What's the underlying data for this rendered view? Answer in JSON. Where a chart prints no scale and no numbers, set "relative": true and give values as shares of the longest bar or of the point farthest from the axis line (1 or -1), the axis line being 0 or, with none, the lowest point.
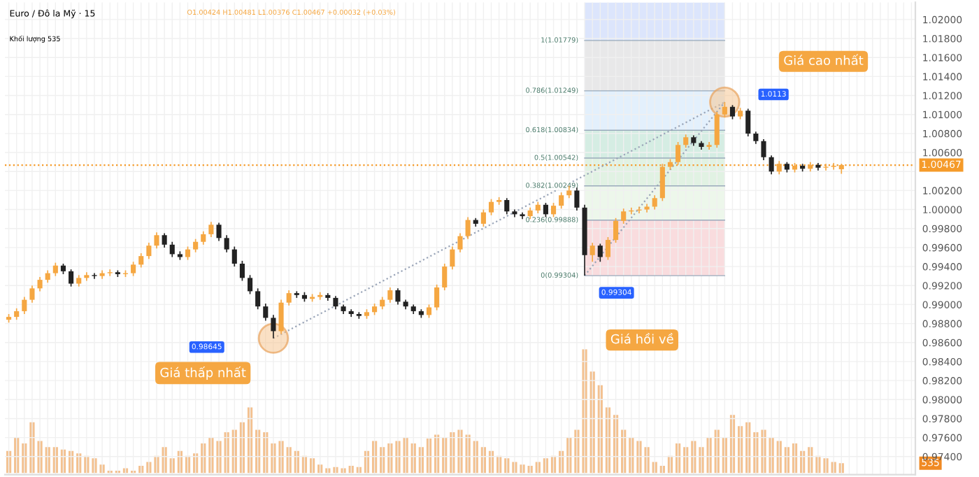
{
  "chart_data": [
    {
      "type": "candlestick",
      "title": "Euro / Đô la Mỹ · 15",
      "subtitle": "O1.00424 H1.00481 L1.00376 C1.00467 +0.00032 (+0.03%)",
      "legend_title": "Khối lượng 535",
      "categories": [
        null,
        null,
        null,
        null,
        null,
        null,
        null,
        null,
        null,
        null,
        null,
        null,
        null,
        null,
        null,
        null,
        null,
        null,
        null,
        null,
        null,
        null,
        null,
        null,
        null,
        null,
        null,
        null,
        null,
        null,
        null,
        null,
        null,
        null,
        null,
        null,
        null,
        null,
        null,
        null,
        null,
        null,
        null,
        null,
        null,
        null,
        null,
        null,
        null,
        null,
        null,
        null,
        null,
        null,
        null,
        null,
        null,
        null,
        null,
        null,
        null,
        null,
        null,
        null,
        null,
        null,
        null,
        null,
        null,
        null,
        null,
        null,
        null,
        null,
        null,
        null,
        null,
        null,
        null,
        null,
        null,
        null,
        null,
        null,
        null,
        null,
        null,
        null,
        null,
        null,
        null,
        null,
        null,
        null,
        null,
        null,
        null,
        null,
        null,
        null,
        null,
        null,
        null,
        null,
        null,
        null,
        null,
        null,
        null,
        null,
        null,
        null,
        null,
        null,
        null,
        null,
        null
      ],
      "series": [
        {
          "colors": [
            "#f5a742",
            "#f5a742",
            "#f5a742",
            "#f5a742",
            "#f5a742",
            "#f5a742",
            "#f5a742",
            "#222222",
            "#222222",
            "#f5a742",
            "#f5a742",
            "#222222",
            "#f5a742",
            "#f5a742",
            "#222222",
            "#f5a742",
            "#f5a742",
            "#f5a742",
            "#f5a742",
            "#f5a742",
            "#222222",
            "#222222",
            "#222222",
            "#f5a742",
            "#f5a742",
            "#f5a742",
            "#f5a742",
            "#222222",
            "#222222",
            "#222222",
            "#222222",
            "#222222",
            "#222222",
            "#222222",
            "#222222",
            "#f5a742",
            "#f5a742",
            "#222222",
            "#222222",
            "#f5a742",
            "#f5a742",
            "#222222",
            "#222222",
            "#222222",
            "#222222",
            "#222222",
            "#f5a742",
            "#f5a742",
            "#f5a742",
            "#f5a742",
            "#222222",
            "#222222",
            "#222222",
            "#222222",
            "#f5a742",
            "#f5a742",
            "#f5a742",
            "#f5a742",
            "#f5a742",
            "#f5a742",
            "#222222",
            "#f5a742",
            "#f5a742",
            "#f5a742",
            "#222222",
            "#222222",
            "#222222",
            "#f5a742",
            "#f5a742",
            "#222222",
            "#f5a742",
            "#f5a742",
            "#f5a742",
            "#222222",
            "#222222",
            "#f5a742",
            "#222222",
            "#f5a742",
            "#f5a742",
            "#f5a742",
            "#f5a742",
            "#f5a742",
            "#f5a742",
            "#f5a742",
            "#f5a742",
            "#f5a742",
            "#f5a742",
            "#f5a742",
            "#222222",
            "#222222",
            "#f5a742",
            "#f5a742",
            "#f5a742",
            "#222222",
            "#f5a742",
            "#222222",
            "#222222",
            "#222222",
            "#222222",
            "#f5a742",
            "#222222",
            "#f5a742",
            "#222222",
            "#f5a742",
            "#222222",
            "#f5a742",
            "#f5a742",
            "#f5a742",
            null,
            null,
            null,
            null,
            null,
            null,
            null,
            null,
            null
          ],
          "ohlc": [
            [
              0.9884,
              0.989,
              0.9881,
              0.9887
            ],
            [
              0.9887,
              0.9896,
              0.9884,
              0.9893
            ],
            [
              0.9893,
              0.9908,
              0.989,
              0.9905
            ],
            [
              0.9905,
              0.992,
              0.9902,
              0.9917
            ],
            [
              0.9917,
              0.9929,
              0.9914,
              0.9926
            ],
            [
              0.9926,
              0.9936,
              0.9923,
              0.9933
            ],
            [
              0.9933,
              0.9944,
              0.993,
              0.9941
            ],
            [
              0.9941,
              0.9943,
              0.9932,
              0.9935
            ],
            [
              0.9935,
              0.9937,
              0.9919,
              0.9922
            ],
            [
              0.9922,
              0.9931,
              0.9919,
              0.9928
            ],
            [
              0.9928,
              0.9934,
              0.9925,
              0.9931
            ],
            [
              0.9931,
              0.9933,
              0.9927,
              0.993
            ],
            [
              0.993,
              0.9936,
              0.9927,
              0.9933
            ],
            [
              0.9933,
              0.9937,
              0.993,
              0.9934
            ],
            [
              0.9934,
              0.9936,
              0.9929,
              0.9932
            ],
            [
              0.9932,
              0.9936,
              0.9929,
              0.9933
            ],
            [
              0.9933,
              0.9945,
              0.993,
              0.9942
            ],
            [
              0.9942,
              0.9954,
              0.9939,
              0.9951
            ],
            [
              0.9951,
              0.9965,
              0.9948,
              0.9962
            ],
            [
              0.9962,
              0.9976,
              0.9959,
              0.9973
            ],
            [
              0.9973,
              0.9975,
              0.996,
              0.9963
            ],
            [
              0.9963,
              0.9966,
              0.995,
              0.9953
            ],
            [
              0.9953,
              0.9956,
              0.9947,
              0.995
            ],
            [
              0.995,
              0.9961,
              0.9947,
              0.9958
            ],
            [
              0.9958,
              0.9969,
              0.9955,
              0.9966
            ],
            [
              0.9966,
              0.9977,
              0.9963,
              0.9974
            ],
            [
              0.9974,
              0.9987,
              0.9971,
              0.9984
            ],
            [
              0.9984,
              0.9986,
              0.9967,
              0.997
            ],
            [
              0.997,
              0.9973,
              0.9955,
              0.9958
            ],
            [
              0.9958,
              0.9961,
              0.994,
              0.9943
            ],
            [
              0.9943,
              0.9946,
              0.9925,
              0.9928
            ],
            [
              0.9928,
              0.9931,
              0.9911,
              0.9914
            ],
            [
              0.9914,
              0.9917,
              0.9895,
              0.9898
            ],
            [
              0.9898,
              0.9901,
              0.9883,
              0.9886
            ],
            [
              0.9886,
              0.9889,
              0.98645,
              0.9872
            ],
            [
              0.9872,
              0.9905,
              0.9869,
              0.9902
            ],
            [
              0.9902,
              0.9915,
              0.9899,
              0.9912
            ],
            [
              0.9912,
              0.9914,
              0.9907,
              0.991
            ],
            [
              0.991,
              0.9913,
              0.9903,
              0.9906
            ],
            [
              0.9906,
              0.9911,
              0.9903,
              0.9908
            ],
            [
              0.9908,
              0.9913,
              0.9905,
              0.991
            ],
            [
              0.991,
              0.9912,
              0.9904,
              0.9907
            ],
            [
              0.9907,
              0.9909,
              0.9895,
              0.9898
            ],
            [
              0.9898,
              0.99,
              0.989,
              0.9893
            ],
            [
              0.9893,
              0.9895,
              0.9887,
              0.989
            ],
            [
              0.989,
              0.9892,
              0.9885,
              0.9888
            ],
            [
              0.9888,
              0.9895,
              0.9885,
              0.9892
            ],
            [
              0.9892,
              0.9901,
              0.9889,
              0.9898
            ],
            [
              0.9898,
              0.9908,
              0.9895,
              0.9905
            ],
            [
              0.9905,
              0.9918,
              0.9902,
              0.9915
            ],
            [
              0.9915,
              0.9917,
              0.99,
              0.9903
            ],
            [
              0.9903,
              0.9905,
              0.9895,
              0.9898
            ],
            [
              0.9898,
              0.99,
              0.989,
              0.9893
            ],
            [
              0.9893,
              0.9895,
              0.9886,
              0.9889
            ],
            [
              0.9889,
              0.99,
              0.9886,
              0.9897
            ],
            [
              0.9897,
              0.9921,
              0.9894,
              0.9918
            ],
            [
              0.9918,
              0.9943,
              0.9915,
              0.994
            ],
            [
              0.994,
              0.9961,
              0.9937,
              0.9958
            ],
            [
              0.9958,
              0.9975,
              0.9955,
              0.9972
            ],
            [
              0.9972,
              0.9992,
              0.9969,
              0.9989
            ],
            [
              0.9989,
              0.9991,
              0.9982,
              0.9985
            ],
            [
              0.9985,
              1.0,
              0.9982,
              0.9997
            ],
            [
              0.9997,
              1.0011,
              0.9994,
              1.0008
            ],
            [
              1.0008,
              1.0013,
              1.0005,
              1.001
            ],
            [
              1.001,
              1.0012,
              0.9995,
              0.9998
            ],
            [
              0.9998,
              1.0,
              0.9992,
              0.9995
            ],
            [
              0.9995,
              0.9997,
              0.999,
              0.9993
            ],
            [
              0.9993,
              1.0002,
              0.999,
              0.9999
            ],
            [
              0.9999,
              1.0008,
              0.9996,
              1.0005
            ],
            [
              1.0005,
              1.0007,
              0.9992,
              0.9995
            ],
            [
              0.9995,
              1.0007,
              0.9992,
              1.0004
            ],
            [
              1.0004,
              1.0018,
              1.0001,
              1.0015
            ],
            [
              1.0015,
              1.0025,
              1.0012,
              1.002
            ],
            [
              1.002,
              1.0023,
              0.9999,
              1.0002
            ],
            [
              1.0002,
              1.0005,
              0.99304,
              0.9952
            ],
            [
              0.9952,
              0.9965,
              0.9945,
              0.9962
            ],
            [
              0.9962,
              0.9964,
              0.9945,
              0.995
            ],
            [
              0.995,
              0.9971,
              0.9947,
              0.9968
            ],
            [
              0.9968,
              0.9991,
              0.9965,
              0.9988
            ],
            [
              0.9988,
              1.0001,
              0.9985,
              0.9998
            ],
            [
              0.9998,
              1.0002,
              0.9995,
              0.9999
            ],
            [
              0.9999,
              1.0003,
              0.9996,
              1.0
            ],
            [
              1.0,
              1.0006,
              0.9997,
              1.0003
            ],
            [
              1.0003,
              1.0015,
              1.0,
              1.0012
            ],
            [
              1.0012,
              1.0048,
              1.0009,
              1.0045
            ],
            [
              1.0045,
              1.0053,
              1.0042,
              1.005
            ],
            [
              1.005,
              1.0071,
              1.0047,
              1.0068
            ],
            [
              1.0068,
              1.0079,
              1.0065,
              1.0076
            ],
            [
              1.0076,
              1.0078,
              1.0067,
              1.007
            ],
            [
              1.007,
              1.0072,
              1.0063,
              1.0066
            ],
            [
              1.0066,
              1.0071,
              1.0063,
              1.0068
            ],
            [
              1.0068,
              1.0103,
              1.0065,
              1.01
            ],
            [
              1.01,
              1.0113,
              1.0097,
              1.0108
            ],
            [
              1.0108,
              1.011,
              1.0095,
              1.0098
            ],
            [
              1.0098,
              1.0107,
              1.0095,
              1.0104
            ],
            [
              1.0104,
              1.0106,
              1.0077,
              1.008
            ],
            [
              1.008,
              1.0082,
              1.0069,
              1.0072
            ],
            [
              1.0072,
              1.0074,
              1.0052,
              1.0055
            ],
            [
              1.0055,
              1.0057,
              1.0037,
              1.004
            ],
            [
              1.004,
              1.0051,
              1.0037,
              1.0048
            ],
            [
              1.0048,
              1.005,
              1.0039,
              1.0042
            ],
            [
              1.0042,
              1.0049,
              1.0039,
              1.0046
            ],
            [
              1.0046,
              1.0048,
              1.004,
              1.0043
            ],
            [
              1.0043,
              1.005,
              1.004,
              1.0047
            ],
            [
              1.0047,
              1.0049,
              1.0041,
              1.0044
            ],
            [
              1.0044,
              1.0048,
              1.0041,
              1.0045
            ],
            [
              1.0045,
              1.0049,
              1.0042,
              1.0046
            ],
            [
              1.00424,
              1.00481,
              1.00376,
              1.00467
            ],
            null,
            null,
            null,
            null,
            null,
            null,
            null,
            null,
            null
          ]
        },
        {
          "type": "line",
          "color": "#9aa5b8",
          "line_style": "dotted",
          "marker": "circle",
          "values": [
            null,
            null,
            null,
            null,
            null,
            null,
            null,
            null,
            null,
            null,
            null,
            null,
            null,
            null,
            null,
            null,
            null,
            null,
            null,
            null,
            null,
            null,
            null,
            null,
            null,
            null,
            null,
            null,
            null,
            null,
            null,
            null,
            null,
            null,
            0.98645,
            null,
            null,
            null,
            null,
            null,
            null,
            null,
            null,
            null,
            null,
            null,
            null,
            null,
            null,
            null,
            null,
            null,
            null,
            null,
            null,
            null,
            null,
            null,
            null,
            null,
            null,
            null,
            null,
            null,
            null,
            null,
            null,
            null,
            null,
            null,
            null,
            null,
            null,
            null,
            null,
            null,
            null,
            null,
            null,
            null,
            null,
            null,
            null,
            null,
            null,
            null,
            null,
            null,
            null,
            null,
            null,
            null,
            1.0113,
            null,
            null,
            null,
            null,
            null,
            null,
            null,
            null,
            null,
            null,
            null,
            null,
            null,
            null,
            null,
            null,
            null,
            null,
            null,
            null,
            null,
            null,
            null,
            null
          ]
        },
        {
          "type": "line",
          "color": "#9aa5b8",
          "line_style": "dotted",
          "values": [
            null,
            null,
            null,
            null,
            null,
            null,
            null,
            null,
            null,
            null,
            null,
            null,
            null,
            null,
            null,
            null,
            null,
            null,
            null,
            null,
            null,
            null,
            null,
            null,
            null,
            null,
            null,
            null,
            null,
            null,
            null,
            null,
            null,
            null,
            null,
            null,
            null,
            null,
            null,
            null,
            null,
            null,
            null,
            null,
            null,
            null,
            null,
            null,
            null,
            null,
            null,
            null,
            null,
            null,
            null,
            null,
            null,
            null,
            null,
            null,
            null,
            null,
            null,
            null,
            null,
            null,
            null,
            null,
            null,
            null,
            null,
            null,
            null,
            null,
            0.99304,
            null,
            null,
            null,
            null,
            null,
            null,
            null,
            null,
            null,
            null,
            null,
            null,
            null,
            null,
            null,
            null,
            null,
            1.0113,
            null,
            null,
            null,
            null,
            null,
            null,
            null,
            null,
            null,
            null,
            null,
            null,
            null,
            null,
            null,
            null,
            null,
            null,
            null,
            null,
            null,
            null,
            null,
            null
          ]
        }
      ],
      "ylim": [
        0.9721,
        1.0218
      ],
      "yticks": [
        {
          "value": 0.974,
          "label": "0.97400"
        },
        {
          "value": 0.976,
          "label": "0.97600"
        },
        {
          "value": 0.978,
          "label": "0.97800"
        },
        {
          "value": 0.98,
          "label": "0.98000"
        },
        {
          "value": 0.982,
          "label": "0.98200"
        },
        {
          "value": 0.984,
          "label": "0.98400"
        },
        {
          "value": 0.986,
          "label": "0.98600"
        },
        {
          "value": 0.988,
          "label": "0.98800"
        },
        {
          "value": 0.99,
          "label": "0.99000"
        },
        {
          "value": 0.992,
          "label": "0.99200"
        },
        {
          "value": 0.994,
          "label": "0.99400"
        },
        {
          "value": 0.996,
          "label": "0.99600"
        },
        {
          "value": 0.998,
          "label": "0.99800"
        },
        {
          "value": 1.0,
          "label": "1.00000"
        },
        {
          "value": 1.002,
          "label": "1.00200"
        },
        {
          "value": 1.004,
          "label": null
        },
        {
          "value": 1.006,
          "label": "1.00600"
        },
        {
          "value": 1.008,
          "label": "1.00800"
        },
        {
          "value": 1.01,
          "label": "1.01000"
        },
        {
          "value": 1.012,
          "label": "1.01200"
        },
        {
          "value": 1.014,
          "label": "1.01400"
        },
        {
          "value": 1.016,
          "label": "1.01600"
        },
        {
          "value": 1.018,
          "label": "1.01800"
        },
        {
          "value": 1.02,
          "label": "1.02000"
        }
      ],
      "tick_labels": "y",
      "grid": true,
      "legend": false,
      "ref_lines": [
        {
          "axis": "y",
          "value": 1.00467,
          "label": "1.00467",
          "color": "#f59b2a",
          "line_style": "dotted"
        }
      ],
      "bands": [
        {
          "axis": "y",
          "from": 0.99304,
          "to": 0.99888,
          "label": "0(0.99304)",
          "color": "#f8d3d6"
        },
        {
          "axis": "y",
          "from": 0.99888,
          "to": 1.00249,
          "label": "0.236(0.99888)",
          "color": "#e8f5e6"
        },
        {
          "axis": "y",
          "from": 1.00249,
          "to": 1.00542,
          "label": "0.382(1.00249)",
          "color": "#d9efdc"
        },
        {
          "axis": "y",
          "from": 1.00542,
          "to": 1.00834,
          "label": "0.5(1.00542)",
          "color": "#cbe9dc"
        },
        {
          "axis": "y",
          "from": 1.00834,
          "to": 1.01249,
          "label": "0.618(1.00834)",
          "color": "#dcecfb"
        },
        {
          "axis": "y",
          "from": 1.01249,
          "to": 1.01779,
          "label": "0.786(1.01249)",
          "color": "#e2e2e4"
        },
        {
          "axis": "y",
          "from": 1.01779,
          "to": 1.0218,
          "label": "1(1.01779)",
          "color": "#d3defb"
        }
      ],
      "annotations": [
        "Giá thấp nhất",
        "0.98645",
        "Giá hồi về",
        "0.99304",
        "Giá cao nhất",
        "1.0113"
      ]
    },
    {
      "type": "bar",
      "relative": true,
      "color": "#f3c190",
      "tick_labels": false,
      "categories": [
        null,
        null,
        null,
        null,
        null,
        null,
        null,
        null,
        null,
        null,
        null,
        null,
        null,
        null,
        null,
        null,
        null,
        null,
        null,
        null,
        null,
        null,
        null,
        null,
        null,
        null,
        null,
        null,
        null,
        null,
        null,
        null,
        null,
        null,
        null,
        null,
        null,
        null,
        null,
        null,
        null,
        null,
        null,
        null,
        null,
        null,
        null,
        null,
        null,
        null,
        null,
        null,
        null,
        null,
        null,
        null,
        null,
        null,
        null,
        null,
        null,
        null,
        null,
        null,
        null,
        null,
        null,
        null,
        null,
        null,
        null,
        null,
        null,
        null,
        null,
        null,
        null,
        null,
        null,
        null,
        null,
        null,
        null,
        null,
        null,
        null,
        null,
        null,
        null,
        null,
        null,
        null,
        null,
        null,
        null,
        null,
        null,
        null,
        null,
        null,
        null,
        null,
        null,
        null,
        null,
        null,
        null,
        null,
        null,
        null,
        null,
        null,
        null,
        null,
        null,
        null,
        null
      ],
      "values": [
        0.18,
        0.29,
        0.24,
        0.41,
        0.26,
        0.21,
        0.21,
        0.19,
        0.18,
        0.16,
        0.14,
        0.12,
        0.07,
        0.02,
        0.02,
        0.04,
        0.02,
        0.06,
        0.09,
        0.14,
        0.21,
        0.12,
        0.18,
        0.14,
        0.16,
        0.24,
        0.29,
        0.26,
        0.33,
        0.35,
        0.41,
        0.53,
        0.35,
        0.33,
        0.24,
        0.26,
        0.21,
        0.18,
        0.14,
        0.12,
        0.07,
        0.04,
        0.05,
        0.04,
        0.06,
        0.05,
        0.18,
        0.26,
        0.21,
        0.24,
        0.26,
        0.29,
        0.24,
        0.21,
        0.28,
        0.31,
        0.29,
        0.33,
        0.35,
        0.31,
        0.26,
        0.21,
        0.18,
        0.14,
        0.12,
        0.09,
        0.07,
        0.06,
        0.09,
        0.12,
        0.14,
        0.18,
        0.29,
        0.35,
        1,
        0.82,
        0.71,
        0.53,
        0.47,
        0.35,
        0.29,
        0.26,
        0.21,
        0.09,
        0.06,
        0.14,
        0.24,
        0.21,
        0.26,
        0.21,
        0.29,
        0.35,
        0.29,
        0.47,
        0.38,
        0.41,
        0.33,
        0.35,
        0.29,
        0.26,
        0.21,
        0.24,
        0.18,
        0.21,
        0.14,
        0.12,
        0.09,
        0.08,
        null,
        null,
        null,
        null,
        null,
        null,
        null,
        null,
        null
      ],
      "annotations": [
        "535"
      ]
    }
  ]
}
